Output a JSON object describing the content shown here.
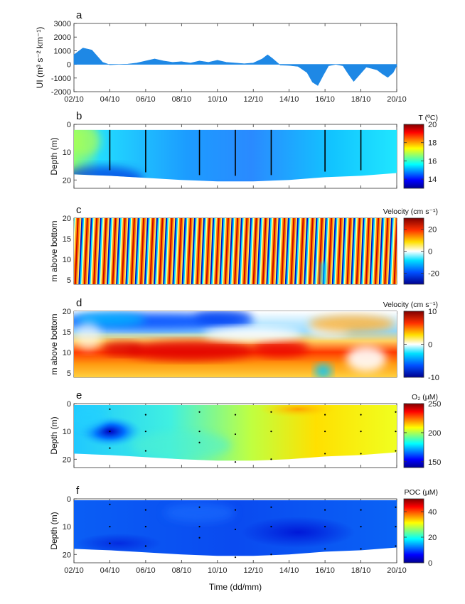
{
  "time_axis": {
    "ticks": [
      "02/10",
      "04/10",
      "06/10",
      "08/10",
      "10/10",
      "12/10",
      "14/10",
      "16/10",
      "18/10",
      "20/10"
    ],
    "xlabel": "Time (dd/mm)",
    "xlim_days": [
      2,
      20
    ]
  },
  "chart_data": [
    {
      "type": "area",
      "panel": "a",
      "ylabel": "UI (m³ s⁻² km⁻¹)",
      "ylim": [
        -2000,
        3000
      ],
      "yticks": [
        "3000",
        "2000",
        "1000",
        "0",
        "-1000",
        "-2000"
      ],
      "x": [
        2.0,
        2.5,
        3.0,
        3.3,
        3.6,
        4.0,
        4.5,
        5.0,
        5.5,
        6.0,
        6.5,
        7.0,
        7.5,
        8.0,
        8.5,
        9.0,
        9.5,
        10.0,
        10.5,
        11.0,
        11.5,
        12.0,
        12.5,
        12.8,
        13.1,
        13.5,
        14.0,
        14.5,
        15.0,
        15.3,
        15.6,
        15.9,
        16.2,
        16.6,
        17.0,
        17.3,
        17.6,
        17.9,
        18.3,
        18.6,
        18.9,
        19.2,
        19.5,
        19.8,
        20.0
      ],
      "values": [
        700,
        1200,
        1050,
        600,
        150,
        -30,
        0,
        20,
        100,
        250,
        400,
        250,
        150,
        200,
        100,
        250,
        150,
        300,
        150,
        100,
        50,
        100,
        400,
        700,
        400,
        -50,
        -80,
        -150,
        -600,
        -1300,
        -1550,
        -800,
        -100,
        0,
        -100,
        -700,
        -1250,
        -800,
        -200,
        -300,
        -400,
        -700,
        -950,
        -600,
        -100
      ],
      "fill_color": "#1e88e5"
    },
    {
      "type": "heatmap",
      "panel": "b",
      "ylabel": "Depth (m)",
      "ylim": [
        0,
        23
      ],
      "yticks": [
        "0",
        "10",
        "20"
      ],
      "colorbar_title": "T (ºC)",
      "colorbar_range": [
        13,
        20
      ],
      "colorbar_ticks": [
        "20",
        "18",
        "16",
        "14"
      ],
      "profile_days": [
        4,
        6,
        9,
        11,
        13,
        16,
        18
      ],
      "bottom_depth": [
        [
          2,
          18
        ],
        [
          4,
          18.5
        ],
        [
          8,
          20
        ],
        [
          10,
          20.5
        ],
        [
          12,
          20.5
        ],
        [
          14,
          20
        ],
        [
          16,
          19
        ],
        [
          18,
          18.5
        ],
        [
          20,
          17.5
        ]
      ]
    },
    {
      "type": "heatmap",
      "panel": "c",
      "ylabel": "m above bottom",
      "ylim": [
        4,
        20
      ],
      "yticks": [
        "20",
        "15",
        "10",
        "5"
      ],
      "colorbar_title": "Velocity (cm s⁻¹)",
      "colorbar_range": [
        -30,
        30
      ],
      "colorbar_ticks": [
        "20",
        "0",
        "-20"
      ]
    },
    {
      "type": "heatmap",
      "panel": "d",
      "ylabel": "m above bottom",
      "ylim": [
        4,
        20
      ],
      "yticks": [
        "20",
        "15",
        "10",
        "5"
      ],
      "colorbar_title": "Velocity (cm s⁻¹)",
      "colorbar_range": [
        -10,
        10
      ],
      "colorbar_ticks": [
        "10",
        "0",
        "-10"
      ]
    },
    {
      "type": "heatmap",
      "panel": "e",
      "ylabel": "Depth (m)",
      "ylim": [
        0,
        23
      ],
      "yticks": [
        "0",
        "10",
        "20"
      ],
      "colorbar_title": "O₂ (µM)",
      "colorbar_range": [
        140,
        250
      ],
      "colorbar_ticks": [
        "250",
        "200",
        "150"
      ],
      "sample_points": [
        [
          4,
          2
        ],
        [
          4,
          10
        ],
        [
          4,
          16
        ],
        [
          6,
          4
        ],
        [
          6,
          10
        ],
        [
          6,
          17
        ],
        [
          9,
          3
        ],
        [
          9,
          10
        ],
        [
          9,
          14
        ],
        [
          11,
          4
        ],
        [
          11,
          11
        ],
        [
          11,
          21
        ],
        [
          13,
          3
        ],
        [
          13,
          10
        ],
        [
          13,
          20
        ],
        [
          16,
          4
        ],
        [
          16,
          10
        ],
        [
          16,
          18
        ],
        [
          18,
          4
        ],
        [
          18,
          10
        ],
        [
          18,
          18
        ],
        [
          20,
          3
        ],
        [
          20,
          10
        ],
        [
          20,
          17
        ]
      ]
    },
    {
      "type": "heatmap",
      "panel": "f",
      "ylabel": "Depth (m)",
      "ylim": [
        0,
        23
      ],
      "yticks": [
        "0",
        "10",
        "20"
      ],
      "colorbar_title": "POC (µM)",
      "colorbar_range": [
        0,
        50
      ],
      "colorbar_ticks": [
        "40",
        "20",
        "0"
      ],
      "sample_points": [
        [
          4,
          2
        ],
        [
          4,
          10
        ],
        [
          4,
          16
        ],
        [
          6,
          4
        ],
        [
          6,
          10
        ],
        [
          6,
          17
        ],
        [
          9,
          3
        ],
        [
          9,
          10
        ],
        [
          9,
          14
        ],
        [
          11,
          4
        ],
        [
          11,
          11
        ],
        [
          11,
          21
        ],
        [
          13,
          3
        ],
        [
          13,
          10
        ],
        [
          13,
          20
        ],
        [
          16,
          4
        ],
        [
          16,
          10
        ],
        [
          16,
          18
        ],
        [
          18,
          4
        ],
        [
          18,
          10
        ],
        [
          18,
          18
        ],
        [
          20,
          3
        ],
        [
          20,
          10
        ],
        [
          20,
          17
        ]
      ]
    }
  ]
}
